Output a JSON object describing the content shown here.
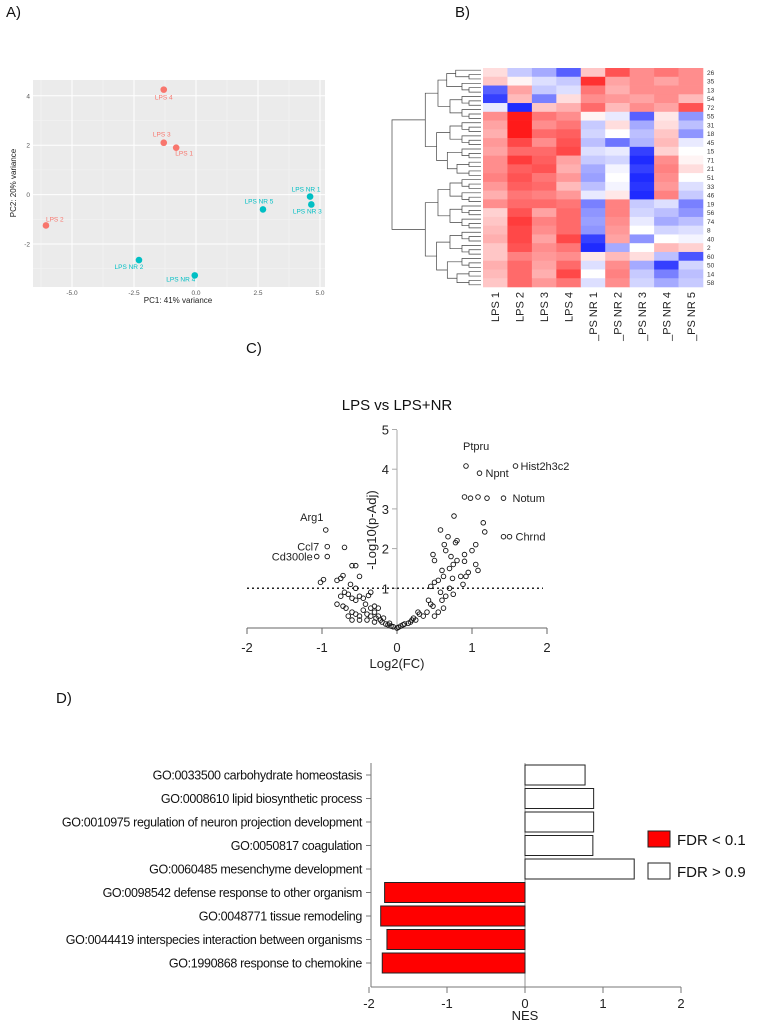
{
  "panel_labels": {
    "a": "A)",
    "b": "B)",
    "c": "C)",
    "d": "D)"
  },
  "chart_data": [
    {
      "type": "scatter",
      "id": "pca",
      "xlabel": "PC1: 41% variance",
      "ylabel": "PC2: 20% variance",
      "xlim": [
        -6.3,
        5.1
      ],
      "ylim": [
        -3.6,
        4.6
      ],
      "xticks": [
        -5.0,
        -2.5,
        0.0,
        2.5,
        5.0
      ],
      "xtick_labels": [
        "-5.0",
        "-2.5",
        "0.0",
        "2.5",
        "5.0"
      ],
      "yticks": [
        -2,
        0,
        2,
        4
      ],
      "ytick_labels": [
        "-2",
        "0",
        "2",
        "4"
      ],
      "grid": true,
      "colors": {
        "LPS": "#f8766d",
        "LPS NR": "#00bfc4"
      },
      "points": [
        {
          "label": "LPS 4",
          "group": "LPS",
          "x": -1.3,
          "y": 4.25
        },
        {
          "label": "LPS 3",
          "group": "LPS",
          "x": -1.3,
          "y": 2.1
        },
        {
          "label": "LPS 1",
          "group": "LPS",
          "x": -0.8,
          "y": 1.9
        },
        {
          "label": "LPS 2",
          "group": "LPS",
          "x": -6.05,
          "y": -1.25
        },
        {
          "label": "LPS NR 1",
          "group": "LPS NR",
          "x": 4.6,
          "y": -0.08
        },
        {
          "label": "LPS NR 5",
          "group": "LPS NR",
          "x": 2.7,
          "y": -0.6
        },
        {
          "label": "LPS NR 3",
          "group": "LPS NR",
          "x": 4.65,
          "y": -0.4
        },
        {
          "label": "LPS NR 2",
          "group": "LPS NR",
          "x": -2.3,
          "y": -2.65
        },
        {
          "label": "LPS NR 4",
          "group": "LPS NR",
          "x": -0.05,
          "y": -3.27
        }
      ]
    },
    {
      "type": "heatmap",
      "id": "heatmap",
      "columns": [
        "LPS 1",
        "LPS 2",
        "LPS 3",
        "LPS 4",
        "_PS NR 1",
        "_PS NR 2",
        "_PS NR 3",
        "_PS NR 4",
        "_PS NR 5"
      ],
      "rows": [
        "26",
        "35",
        "13",
        "54",
        "72",
        "55",
        "31",
        "18",
        "45",
        "15",
        "71",
        "21",
        "51",
        "33",
        "46",
        "19",
        "56",
        "74",
        "8",
        "40",
        "2",
        "60",
        "50",
        "14",
        "58"
      ],
      "color_low": "#1f2bff",
      "color_mid": "#ffffff",
      "color_high": "#ff1a1a",
      "values": [
        [
          0.3,
          -0.5,
          -0.8,
          -1.5,
          0.5,
          1.5,
          1,
          1.2,
          1
        ],
        [
          0.5,
          0.1,
          -0.3,
          -0.5,
          1.8,
          0.8,
          1,
          0.8,
          1
        ],
        [
          -1.5,
          0.8,
          -0.5,
          -0.3,
          1.2,
          0.7,
          1,
          1,
          1
        ],
        [
          -1.8,
          0.6,
          -1.2,
          0.3,
          1,
          0.9,
          0.8,
          1,
          0.6
        ],
        [
          -0.2,
          -2,
          0.5,
          0.7,
          1.3,
          0.6,
          1,
          0.8,
          1.5
        ],
        [
          1,
          2,
          1.2,
          1,
          0.1,
          -0.2,
          -1.5,
          0.2,
          -1
        ],
        [
          0.8,
          2,
          1,
          1.2,
          -0.5,
          0.3,
          -0.8,
          0.3,
          -0.6
        ],
        [
          0.7,
          2,
          1.3,
          1.4,
          -0.4,
          0,
          -0.6,
          0.5,
          -1
        ],
        [
          0.9,
          1.6,
          1,
          1.5,
          -0.6,
          -1.3,
          -0.7,
          0.6,
          -0.2
        ],
        [
          0.8,
          1.3,
          1.3,
          1.6,
          -0.3,
          -0.2,
          -1.8,
          0.4,
          0
        ],
        [
          1,
          1.7,
          1.4,
          0.8,
          -0.5,
          -0.4,
          -2,
          1,
          0.1
        ],
        [
          1,
          1.4,
          1.5,
          0.7,
          -0.8,
          -0.1,
          -1.8,
          1.1,
          0.3
        ],
        [
          1.1,
          1.5,
          1.2,
          0.9,
          -0.9,
          0,
          -2,
          1,
          0
        ],
        [
          0.9,
          1.4,
          1.3,
          0.6,
          -0.6,
          -0.1,
          -1.9,
          0.9,
          -0.3
        ],
        [
          0.7,
          1.2,
          1.1,
          0.9,
          -0.2,
          0.2,
          -2,
          1.1,
          -0.5
        ],
        [
          1,
          1.3,
          1.3,
          1.2,
          -1.2,
          1.1,
          -0.5,
          -0.3,
          -1.2
        ],
        [
          0.4,
          1.5,
          0.8,
          1.3,
          -1,
          1.1,
          -0.4,
          -0.6,
          -1
        ],
        [
          0.5,
          1.7,
          1.1,
          1.3,
          -0.9,
          1,
          -0.2,
          -0.8,
          -0.6
        ],
        [
          0.6,
          1.6,
          1,
          1.3,
          -1,
          0.9,
          0,
          -0.4,
          -0.3
        ],
        [
          0.7,
          1.6,
          0.8,
          1.6,
          -1.8,
          0.8,
          -1,
          0,
          -0.1
        ],
        [
          0.5,
          1.5,
          1,
          1.2,
          -2,
          -0.8,
          0,
          0.6,
          0.4
        ],
        [
          0.5,
          1.1,
          0.9,
          1,
          0.2,
          0.6,
          0.3,
          -0.6,
          -1.6
        ],
        [
          0.7,
          1.3,
          0.8,
          1.3,
          -0.3,
          1,
          -0.8,
          -1.8,
          -0.4
        ],
        [
          0.6,
          1.3,
          0.7,
          1.6,
          0,
          1.1,
          -0.5,
          -1.2,
          -0.6
        ],
        [
          0.5,
          1.3,
          0.9,
          1.2,
          -0.3,
          1,
          -0.4,
          -0.8,
          -0.5
        ]
      ]
    },
    {
      "type": "scatter",
      "id": "volcano",
      "title": "LPS vs LPS+NR",
      "xlabel": "Log2(FC)",
      "ylabel": "-Log10(p-Adj)",
      "xlim": [
        -2,
        2
      ],
      "ylim": [
        0,
        5
      ],
      "xticks": [
        -2,
        -1,
        0,
        1,
        2
      ],
      "xtick_labels": [
        "-2",
        "-1",
        "0",
        "1",
        "2"
      ],
      "yticks": [
        1,
        2,
        3,
        4,
        5
      ],
      "ytick_labels": [
        "1",
        "2",
        "3",
        "4",
        "5"
      ],
      "threshold_y": 1,
      "annotations": [
        {
          "text": "Ptpru",
          "x": 0.92,
          "y": 4.08
        },
        {
          "text": "Npnt",
          "x": 1.1,
          "y": 3.9
        },
        {
          "text": "Hist2h3c2",
          "x": 1.58,
          "y": 4.08
        },
        {
          "text": "Notum",
          "x": 1.42,
          "y": 3.27
        },
        {
          "text": "Chrnd",
          "x": 1.5,
          "y": 2.3
        },
        {
          "text": "Arg1",
          "x": -0.95,
          "y": 2.47
        },
        {
          "text": "Ccl7",
          "x": -0.93,
          "y": 2.05
        },
        {
          "text": "Cd300le",
          "x": -1.07,
          "y": 1.8
        }
      ],
      "points": [
        [
          -1.07,
          1.8
        ],
        [
          -0.93,
          1.8
        ],
        [
          -0.93,
          2.05
        ],
        [
          -0.95,
          2.47
        ],
        [
          -0.7,
          2.03
        ],
        [
          -1.02,
          1.15
        ],
        [
          -0.98,
          1.22
        ],
        [
          -0.8,
          1.2
        ],
        [
          -0.75,
          1.25
        ],
        [
          -0.72,
          1.32
        ],
        [
          -0.62,
          1.1
        ],
        [
          -0.6,
          1.57
        ],
        [
          -0.55,
          1.57
        ],
        [
          -0.5,
          1.3
        ],
        [
          -0.75,
          0.8
        ],
        [
          -0.7,
          0.9
        ],
        [
          -0.65,
          0.85
        ],
        [
          -0.6,
          0.75
        ],
        [
          -0.72,
          0.55
        ],
        [
          -0.68,
          0.5
        ],
        [
          -0.55,
          0.7
        ],
        [
          -0.5,
          0.8
        ],
        [
          -0.45,
          0.75
        ],
        [
          -0.42,
          0.6
        ],
        [
          -0.38,
          0.82
        ],
        [
          -0.35,
          0.5
        ],
        [
          -0.6,
          0.4
        ],
        [
          -0.55,
          0.35
        ],
        [
          -0.5,
          0.3
        ],
        [
          -0.45,
          0.45
        ],
        [
          -0.4,
          0.35
        ],
        [
          -0.35,
          0.3
        ],
        [
          -0.3,
          0.4
        ],
        [
          -0.28,
          0.25
        ],
        [
          -0.25,
          0.3
        ],
        [
          -0.22,
          0.2
        ],
        [
          -0.2,
          0.15
        ],
        [
          -0.18,
          0.25
        ],
        [
          -0.15,
          0.1
        ],
        [
          -0.12,
          0.08
        ],
        [
          -0.1,
          0.12
        ],
        [
          -0.08,
          0.05
        ],
        [
          -0.05,
          0.03
        ],
        [
          -0.3,
          0.15
        ],
        [
          -0.4,
          0.2
        ],
        [
          -0.5,
          0.2
        ],
        [
          -0.6,
          0.2
        ],
        [
          -0.65,
          0.3
        ],
        [
          -0.35,
          0.9
        ],
        [
          -0.3,
          0.55
        ],
        [
          -0.25,
          0.5
        ],
        [
          -0.55,
          1.0
        ],
        [
          -0.8,
          0.6
        ],
        [
          0.0,
          0.0
        ],
        [
          0.02,
          0.02
        ],
        [
          0.05,
          0.05
        ],
        [
          0.08,
          0.08
        ],
        [
          0.1,
          0.1
        ],
        [
          0.15,
          0.12
        ],
        [
          0.18,
          0.15
        ],
        [
          0.2,
          0.2
        ],
        [
          0.22,
          0.25
        ],
        [
          0.25,
          0.2
        ],
        [
          0.28,
          0.4
        ],
        [
          0.3,
          0.35
        ],
        [
          0.35,
          0.3
        ],
        [
          0.4,
          0.4
        ],
        [
          0.45,
          0.6
        ],
        [
          0.42,
          0.7
        ],
        [
          0.48,
          0.55
        ],
        [
          0.5,
          0.3
        ],
        [
          0.55,
          0.4
        ],
        [
          0.45,
          1.05
        ],
        [
          0.5,
          1.15
        ],
        [
          0.55,
          1.2
        ],
        [
          0.58,
          0.9
        ],
        [
          0.6,
          0.7
        ],
        [
          0.62,
          0.5
        ],
        [
          0.65,
          0.8
        ],
        [
          0.48,
          1.85
        ],
        [
          0.5,
          1.7
        ],
        [
          0.58,
          2.47
        ],
        [
          0.6,
          1.45
        ],
        [
          0.62,
          1.3
        ],
        [
          0.63,
          2.1
        ],
        [
          0.65,
          1.95
        ],
        [
          0.68,
          2.3
        ],
        [
          0.7,
          1.5
        ],
        [
          0.72,
          1.8
        ],
        [
          0.75,
          1.6
        ],
        [
          0.74,
          1.25
        ],
        [
          0.76,
          2.82
        ],
        [
          0.78,
          2.15
        ],
        [
          0.8,
          2.2
        ],
        [
          0.8,
          1.7
        ],
        [
          0.85,
          1.3
        ],
        [
          0.88,
          1.1
        ],
        [
          0.9,
          1.85
        ],
        [
          0.9,
          1.68
        ],
        [
          0.92,
          1.3
        ],
        [
          0.95,
          1.4
        ],
        [
          1.0,
          1.95
        ],
        [
          1.05,
          2.1
        ],
        [
          1.05,
          1.6
        ],
        [
          1.08,
          1.45
        ],
        [
          1.15,
          2.65
        ],
        [
          1.17,
          2.42
        ],
        [
          0.9,
          3.3
        ],
        [
          0.98,
          3.27
        ],
        [
          1.08,
          3.3
        ],
        [
          1.2,
          3.27
        ],
        [
          1.42,
          3.27
        ],
        [
          0.92,
          4.08
        ],
        [
          1.1,
          3.9
        ],
        [
          1.58,
          4.08
        ],
        [
          1.42,
          2.3
        ],
        [
          1.5,
          2.3
        ],
        [
          0.75,
          0.85
        ],
        [
          0.7,
          1.0
        ]
      ]
    },
    {
      "type": "bar",
      "id": "gsea",
      "orientation": "horizontal",
      "xlabel": "NES",
      "xlim": [
        -2,
        2
      ],
      "xticks": [
        -2,
        -1,
        0,
        1,
        2
      ],
      "xtick_labels": [
        "-2",
        "-1",
        "0",
        "1",
        "2"
      ],
      "legend": [
        {
          "label": "FDR < 0.1",
          "color": "#ff0000"
        },
        {
          "label": "FDR > 0.9",
          "color": "#ffffff"
        }
      ],
      "legend_position": "right",
      "categories": [
        "GO:0033500 carbohydrate homeostasis",
        "GO:0008610 lipid biosynthetic process",
        "GO:0010975 regulation of neuron projection development",
        "GO:0050817 coagulation",
        "GO:0060485 mesenchyme development",
        "GO:0098542 defense response to other organism",
        "GO:0048771 tissue remodeling",
        "GO:0044419 interspecies interaction between organisms",
        "GO:1990868 response to chemokine"
      ],
      "values": [
        0.77,
        0.88,
        0.88,
        0.87,
        1.4,
        -1.8,
        -1.85,
        -1.77,
        -1.83
      ],
      "fdr_group": [
        1,
        1,
        1,
        1,
        1,
        0,
        0,
        0,
        0
      ]
    }
  ]
}
